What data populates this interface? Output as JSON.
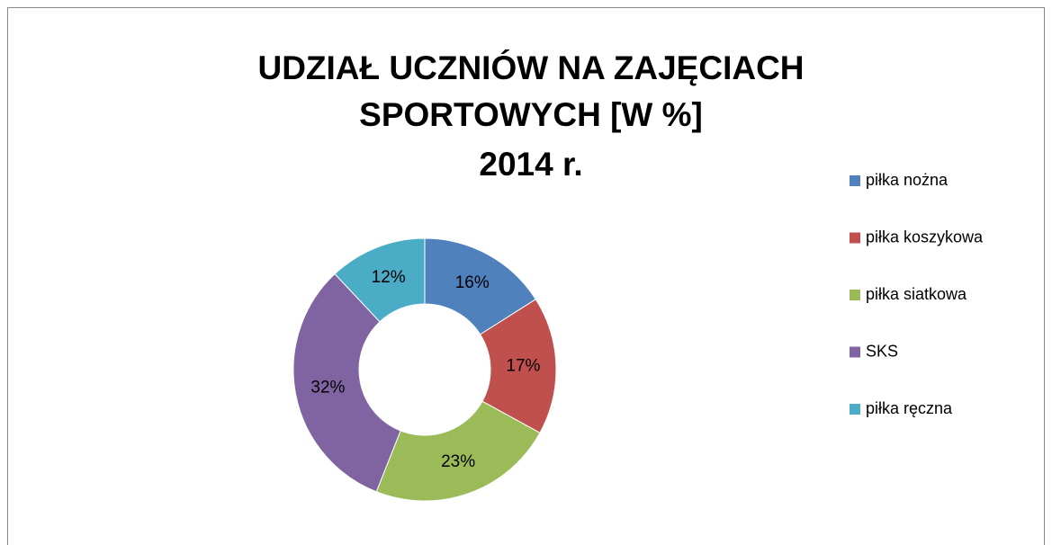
{
  "chart_data": {
    "type": "donut",
    "title": [
      "UDZIAŁ UCZNIÓW NA ZAJĘCIACH",
      "SPORTOWYCH [W %]",
      "2014 r."
    ],
    "categories": [
      "piłka nożna",
      "piłka koszykowa",
      "piłka siatkowa",
      "SKS",
      "piłka ręczna"
    ],
    "values": [
      16,
      17,
      23,
      32,
      12
    ],
    "value_labels": [
      "16%",
      "17%",
      "23%",
      "32%",
      "12%"
    ],
    "colors": [
      "#4f81bd",
      "#c0504d",
      "#9bbb59",
      "#8064a2",
      "#4bacc6"
    ],
    "legend": "right"
  }
}
